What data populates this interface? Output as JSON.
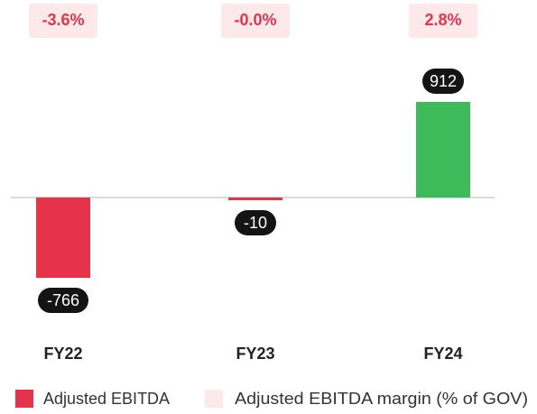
{
  "chart_data": {
    "type": "bar",
    "categories": [
      "FY22",
      "FY23",
      "FY24"
    ],
    "series": [
      {
        "name": "Adjusted EBITDA",
        "color": "#e5334b",
        "colors": [
          "#e5334b",
          "#e5334b",
          "#3dba5a"
        ],
        "values": [
          -766,
          -10,
          912
        ]
      },
      {
        "name": "Adjusted EBITDA margin (% of GOV)",
        "color": "#fde8ea",
        "text_color": "#e5334b",
        "values": [
          -3.6,
          -0.0,
          2.8
        ],
        "value_labels": [
          "-3.6%",
          "-0.0%",
          "2.8%"
        ]
      }
    ]
  }
}
